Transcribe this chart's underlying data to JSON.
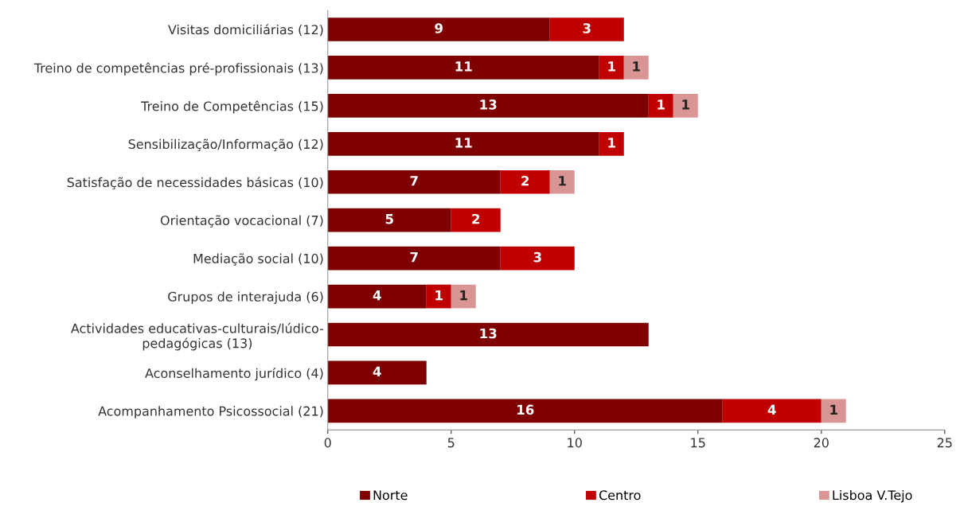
{
  "chart_data": {
    "type": "bar",
    "orientation": "horizontal",
    "stacked": true,
    "data_labels": true,
    "grid": false,
    "legend": "bottom",
    "categories": [
      "Visitas domiciliárias (12)",
      "Treino de competências pré-profissionais (13)",
      "Treino de Competências (15)",
      "Sensibilização/Informação (12)",
      "Satisfação de necessidades básicas (10)",
      "Orientação vocacional (7)",
      "Mediação social (10)",
      "Grupos de interajuda (6)",
      "Actividades educativas-culturais/lúdico-\npedagógicas (13)",
      "Aconselhamento jurídico (4)",
      "Acompanhamento Psicossocial (21)"
    ],
    "series": [
      {
        "name": "Norte",
        "color": "#7f0000",
        "values": [
          9,
          11,
          13,
          11,
          7,
          5,
          7,
          4,
          13,
          4,
          16
        ]
      },
      {
        "name": "Centro",
        "color": "#c00000",
        "values": [
          3,
          1,
          1,
          1,
          2,
          2,
          3,
          1,
          null,
          null,
          4
        ]
      },
      {
        "name": "Lisboa V.Tejo",
        "color": "#d99594",
        "values": [
          null,
          1,
          1,
          null,
          1,
          null,
          null,
          1,
          null,
          null,
          1
        ]
      }
    ],
    "xlim": [
      0,
      25
    ],
    "xticks": [
      0,
      5,
      10,
      15,
      20,
      25
    ]
  }
}
